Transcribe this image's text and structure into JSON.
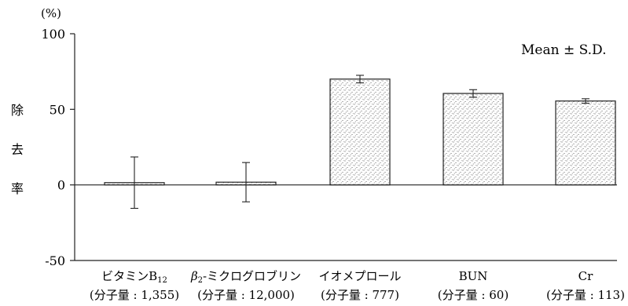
{
  "chart_data": {
    "type": "bar",
    "unit": "(%)",
    "ylabel": [
      "除",
      "去",
      "率"
    ],
    "note": "Mean ± S.D.",
    "ylim": [
      -50,
      100
    ],
    "yticks": [
      100,
      50,
      0,
      -50
    ],
    "categories": [
      {
        "name": "ビタミンB",
        "sub": "12",
        "sup_prefix": "",
        "mw": "(分子量 : 1,355)"
      },
      {
        "name": "-ミクログロブリン",
        "prefix": "β",
        "prefix_sub": "2",
        "mw": "(分子量 : 12,000)"
      },
      {
        "name": "イオメプロール",
        "mw": "(分子量 : 777)"
      },
      {
        "name": "BUN",
        "mw": "(分子量 : 60)"
      },
      {
        "name": "Cr",
        "mw": "(分子量 : 113)"
      }
    ],
    "series": [
      {
        "values": [
          1.5,
          1.8,
          70,
          60.5,
          55.5
        ],
        "sd": [
          17,
          13,
          2.5,
          2.5,
          1.5
        ]
      }
    ]
  }
}
